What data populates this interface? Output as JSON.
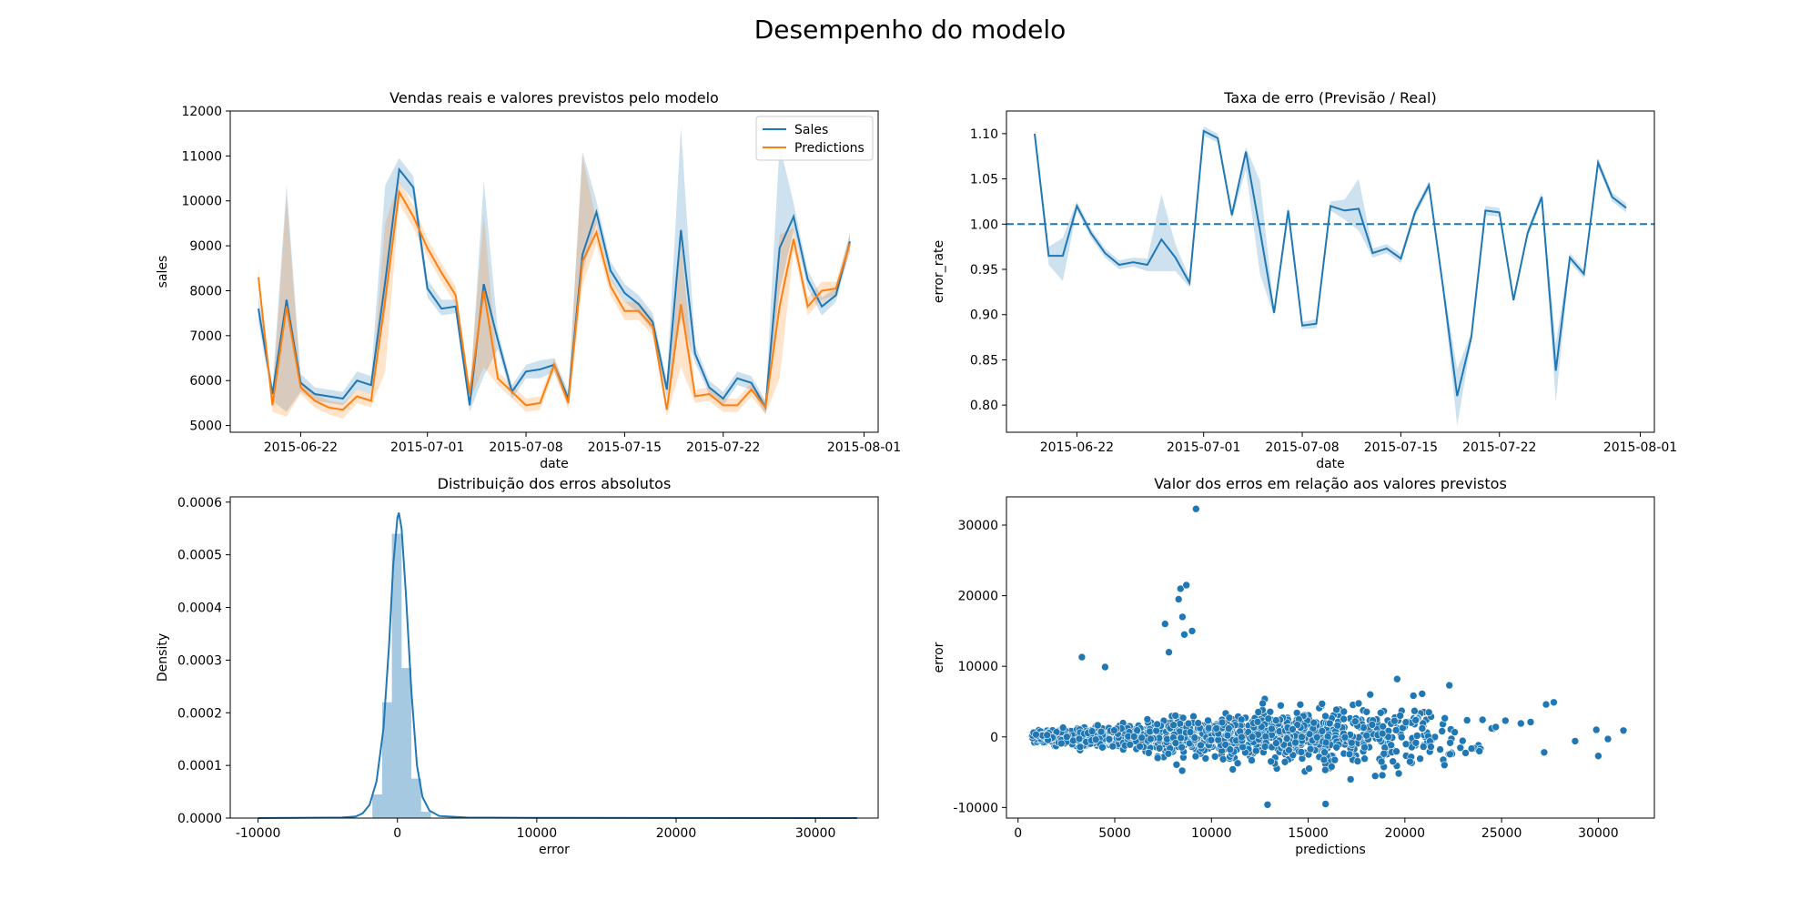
{
  "figure": {
    "title": "Desempenho do modelo"
  },
  "colors": {
    "sales": "#1f77b4",
    "predictions": "#ff7f0e",
    "hist": "#1f77b4",
    "scatter": "#1f77b4"
  },
  "chart_data": [
    {
      "type": "line",
      "title": "Vendas reais e valores previstos pelo modelo",
      "xlabel": "date",
      "ylabel": "sales",
      "x_start": "2015-06-19",
      "x_ticks": [
        "2015-06-22",
        "2015-07-01",
        "2015-07-08",
        "2015-07-15",
        "2015-07-22",
        "2015-08-01"
      ],
      "xlim": [
        "2015-06-17",
        "2015-08-02"
      ],
      "y_ticks": [
        5000,
        6000,
        7000,
        8000,
        9000,
        10000,
        11000,
        12000
      ],
      "ylim": [
        4850,
        12000
      ],
      "legend": "top-right",
      "series": [
        {
          "name": "Sales",
          "values": [
            7600,
            5700,
            7800,
            5950,
            5700,
            5650,
            5600,
            6000,
            5900,
            8200,
            10700,
            10300,
            8050,
            7600,
            7650,
            5450,
            8150,
            6900,
            5750,
            6200,
            6250,
            6350,
            5600,
            8800,
            9750,
            8450,
            7950,
            7700,
            7300,
            5800,
            9350,
            6600,
            5850,
            5600,
            6050,
            5950,
            5400,
            8950,
            9650,
            8250,
            7650,
            7900,
            9100
          ],
          "band_low": [
            7300,
            5550,
            5300,
            5750,
            5550,
            5500,
            5450,
            5800,
            5700,
            7500,
            10400,
            10000,
            7850,
            7450,
            7500,
            5300,
            6100,
            6700,
            5600,
            6050,
            6050,
            6200,
            5450,
            8400,
            9500,
            8250,
            7750,
            7500,
            7100,
            5600,
            7400,
            6400,
            5700,
            5450,
            5900,
            5800,
            5250,
            8000,
            9350,
            8050,
            7450,
            7750,
            8900
          ],
          "band_high": [
            7900,
            5850,
            10350,
            6150,
            5850,
            5800,
            5750,
            6200,
            6100,
            10350,
            10950,
            10550,
            8250,
            7800,
            7800,
            5600,
            10450,
            7100,
            5900,
            6350,
            6450,
            6500,
            5750,
            11100,
            10000,
            8650,
            8150,
            7900,
            7500,
            6000,
            11650,
            6800,
            6000,
            5750,
            6200,
            6100,
            5550,
            11250,
            9950,
            8450,
            7850,
            8050,
            9300
          ]
        },
        {
          "name": "Predictions",
          "values": [
            8300,
            5450,
            7650,
            5850,
            5550,
            5400,
            5350,
            5650,
            5550,
            7800,
            10200,
            9650,
            8950,
            8400,
            7900,
            5700,
            8000,
            6050,
            5750,
            5450,
            5500,
            6350,
            5500,
            8650,
            9300,
            8100,
            7550,
            7550,
            7200,
            5350,
            7700,
            5650,
            5700,
            5450,
            5450,
            5800,
            5400,
            7650,
            9150,
            7650,
            8000,
            8050,
            9050
          ],
          "band_low": [
            8100,
            5300,
            5200,
            5700,
            5400,
            5250,
            5150,
            5500,
            5400,
            6200,
            9950,
            9400,
            8750,
            8200,
            7700,
            5550,
            6300,
            5900,
            5600,
            5300,
            5350,
            6200,
            5350,
            8100,
            9050,
            7900,
            7350,
            7350,
            7000,
            5200,
            6300,
            5500,
            5550,
            5300,
            5300,
            5650,
            5250,
            6050,
            8900,
            7450,
            7800,
            7900,
            8850
          ],
          "band_high": [
            8500,
            5600,
            10100,
            6000,
            5700,
            5550,
            5500,
            5800,
            5700,
            9500,
            10450,
            9900,
            9150,
            8600,
            8100,
            5850,
            9700,
            6200,
            5900,
            5600,
            5650,
            6500,
            5650,
            11000,
            9550,
            8300,
            7750,
            7750,
            7400,
            5500,
            9100,
            5800,
            5850,
            5600,
            5600,
            5950,
            5550,
            9250,
            9400,
            7850,
            8200,
            8200,
            9250
          ]
        }
      ]
    },
    {
      "type": "line",
      "title": "Taxa de erro (Previsão / Real)",
      "xlabel": "date",
      "ylabel": "error_rate",
      "x_start": "2015-06-19",
      "x_ticks": [
        "2015-06-22",
        "2015-07-01",
        "2015-07-08",
        "2015-07-15",
        "2015-07-22",
        "2015-08-01"
      ],
      "xlim": [
        "2015-06-17",
        "2015-08-02"
      ],
      "y_ticks": [
        "0.80",
        "0.85",
        "0.90",
        "0.95",
        "1.00",
        "1.05",
        "1.10"
      ],
      "ylim": [
        0.77,
        1.125
      ],
      "reference_line": 1.0,
      "series": [
        {
          "name": "error_rate",
          "values": [
            1.1,
            0.965,
            0.965,
            1.02,
            0.99,
            0.968,
            0.955,
            0.958,
            0.955,
            0.983,
            0.963,
            0.935,
            1.103,
            1.095,
            1.01,
            1.08,
            0.993,
            0.902,
            1.015,
            0.888,
            0.89,
            1.02,
            1.015,
            1.017,
            0.968,
            0.973,
            0.962,
            1.013,
            1.043,
            0.93,
            0.81,
            0.875,
            1.015,
            1.013,
            0.916,
            0.99,
            1.03,
            0.838,
            0.963,
            0.945,
            1.068,
            1.03,
            1.018
          ],
          "band_low": [
            1.095,
            0.955,
            0.937,
            1.015,
            0.985,
            0.963,
            0.95,
            0.953,
            0.948,
            0.948,
            0.948,
            0.93,
            1.098,
            1.09,
            1.005,
            1.06,
            0.945,
            0.898,
            1.01,
            0.884,
            0.885,
            1.015,
            1.005,
            0.993,
            0.963,
            0.968,
            0.957,
            1.008,
            1.038,
            0.925,
            0.777,
            0.87,
            1.01,
            1.008,
            0.912,
            0.985,
            1.025,
            0.803,
            0.958,
            0.94,
            1.063,
            1.025,
            1.013
          ],
          "band_high": [
            1.105,
            0.975,
            0.985,
            1.025,
            0.995,
            0.973,
            0.96,
            0.963,
            0.962,
            1.033,
            0.978,
            0.94,
            1.108,
            1.1,
            1.015,
            1.085,
            1.048,
            0.906,
            1.02,
            0.892,
            0.895,
            1.025,
            1.027,
            1.05,
            0.973,
            0.978,
            0.967,
            1.018,
            1.048,
            0.935,
            0.84,
            0.88,
            1.02,
            1.018,
            0.92,
            0.995,
            1.035,
            0.868,
            0.968,
            0.95,
            1.073,
            1.035,
            1.023
          ]
        }
      ]
    },
    {
      "type": "bar",
      "title": "Distribuição dos erros absolutos",
      "xlabel": "error",
      "ylabel": "Density",
      "x_ticks": [
        -10000,
        0,
        10000,
        20000,
        30000
      ],
      "xlim": [
        -12000,
        34500
      ],
      "y_ticks": [
        "0.0000",
        "0.0001",
        "0.0002",
        "0.0003",
        "0.0004",
        "0.0005",
        "0.0006"
      ],
      "ylim": [
        0,
        0.00061
      ],
      "bins": [
        {
          "x0": -1800,
          "x1": -1100,
          "density": 4.5e-05
        },
        {
          "x0": -1100,
          "x1": -400,
          "density": 0.00022
        },
        {
          "x0": -400,
          "x1": 300,
          "density": 0.00054
        },
        {
          "x0": 300,
          "x1": 1000,
          "density": 0.000285
        },
        {
          "x0": 1000,
          "x1": 1700,
          "density": 7.5e-05
        },
        {
          "x0": 1700,
          "x1": 2400,
          "density": 1.2e-05
        }
      ],
      "kde": [
        [
          -10000,
          0
        ],
        [
          -4000,
          1e-06
        ],
        [
          -3000,
          3e-06
        ],
        [
          -2500,
          9e-06
        ],
        [
          -2000,
          2.5e-05
        ],
        [
          -1500,
          7e-05
        ],
        [
          -1000,
          0.00017
        ],
        [
          -600,
          0.00033
        ],
        [
          -300,
          0.00048
        ],
        [
          0,
          0.00057
        ],
        [
          100,
          0.00058
        ],
        [
          300,
          0.00055
        ],
        [
          600,
          0.00043
        ],
        [
          1000,
          0.00024
        ],
        [
          1400,
          0.0001
        ],
        [
          1800,
          4e-05
        ],
        [
          2300,
          1.4e-05
        ],
        [
          3000,
          4e-06
        ],
        [
          5000,
          1e-06
        ],
        [
          10000,
          5e-07
        ],
        [
          20000,
          2e-07
        ],
        [
          33000,
          0
        ]
      ]
    },
    {
      "type": "scatter",
      "title": "Valor dos erros em relação aos valores previstos",
      "xlabel": "predictions",
      "ylabel": "error",
      "x_ticks": [
        0,
        5000,
        10000,
        15000,
        20000,
        25000,
        30000
      ],
      "xlim": [
        -600,
        32900
      ],
      "y_ticks": [
        -10000,
        0,
        10000,
        20000,
        30000
      ],
      "ylim": [
        -11500,
        34000
      ],
      "sample_count": 1400,
      "outliers": [
        [
          9200,
          32300
        ],
        [
          8400,
          21000
        ],
        [
          8700,
          21500
        ],
        [
          8300,
          19500
        ],
        [
          8500,
          17000
        ],
        [
          7600,
          16000
        ],
        [
          8600,
          14500
        ],
        [
          9000,
          15000
        ],
        [
          3300,
          11300
        ],
        [
          7800,
          12000
        ],
        [
          4500,
          9900
        ],
        [
          19600,
          8200
        ],
        [
          22300,
          7300
        ],
        [
          12900,
          -9600
        ],
        [
          15900,
          -9500
        ],
        [
          27300,
          4600
        ],
        [
          27700,
          4900
        ],
        [
          29900,
          1000
        ],
        [
          28800,
          -600
        ],
        [
          30500,
          -300
        ],
        [
          31300,
          900
        ],
        [
          30000,
          -2700
        ],
        [
          27200,
          -2200
        ],
        [
          26500,
          2100
        ],
        [
          26000,
          1900
        ],
        [
          25200,
          2300
        ],
        [
          24700,
          1400
        ]
      ]
    }
  ]
}
